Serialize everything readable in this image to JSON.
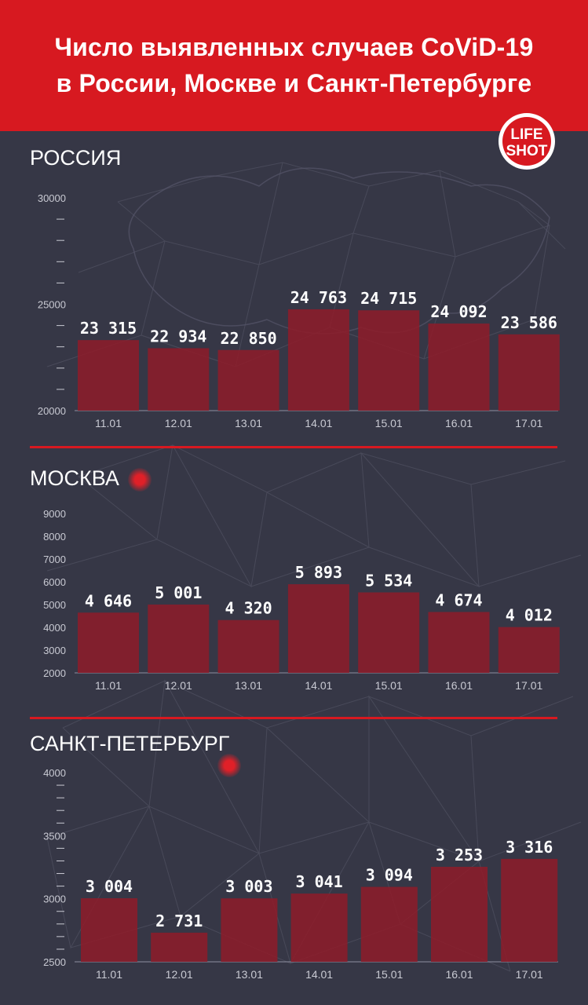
{
  "header": {
    "title_line1": "Число выявленных случаев CoViD-19",
    "title_line2": "в России, Москве и Санкт-Петербурге"
  },
  "logo": {
    "line1": "LIFE",
    "line2": "SHOT"
  },
  "colors": {
    "header_bg": "#d71920",
    "background": "#363746",
    "bar": "#8c1d2a",
    "divider": "#d71920",
    "text": "#ffffff",
    "axis_text": "#c9cad3"
  },
  "sections": [
    {
      "title": "РОССИЯ"
    },
    {
      "title": "МОСКВА"
    },
    {
      "title": "САНКТ-ПЕТЕРБУРГ"
    }
  ],
  "chart_data": [
    {
      "type": "bar",
      "title": "РОССИЯ",
      "categories": [
        "11.01",
        "12.01",
        "13.01",
        "14.01",
        "15.01",
        "16.01",
        "17.01"
      ],
      "values": [
        23315,
        22934,
        22850,
        24763,
        24715,
        24092,
        23586
      ],
      "value_labels": [
        "23 315",
        "22 934",
        "22 850",
        "24 763",
        "24 715",
        "24 092",
        "23 586"
      ],
      "ylim": [
        20000,
        30000
      ],
      "yticks": [
        "20000",
        "25000",
        "30000"
      ],
      "grid": false
    },
    {
      "type": "bar",
      "title": "МОСКВА",
      "categories": [
        "11.01",
        "12.01",
        "13.01",
        "14.01",
        "15.01",
        "16.01",
        "17.01"
      ],
      "values": [
        4646,
        5001,
        4320,
        5893,
        5534,
        4674,
        4012
      ],
      "value_labels": [
        "4 646",
        "5 001",
        "4 320",
        "5 893",
        "5 534",
        "4 674",
        "4 012"
      ],
      "ylim": [
        2000,
        9000
      ],
      "yticks": [
        "2000",
        "3000",
        "4000",
        "5000",
        "6000",
        "7000",
        "8000",
        "9000"
      ],
      "grid": false
    },
    {
      "type": "bar",
      "title": "САНКТ-ПЕТЕРБУРГ",
      "categories": [
        "11.01",
        "12.01",
        "13.01",
        "14.01",
        "15.01",
        "16.01",
        "17.01"
      ],
      "values": [
        3004,
        2731,
        3003,
        3041,
        3094,
        3253,
        3316
      ],
      "value_labels": [
        "3 004",
        "2 731",
        "3 003",
        "3 041",
        "3 094",
        "3 253",
        "3 316"
      ],
      "ylim": [
        2500,
        4000
      ],
      "yticks": [
        "2500",
        "3000",
        "3500",
        "4000"
      ],
      "grid": false
    }
  ]
}
